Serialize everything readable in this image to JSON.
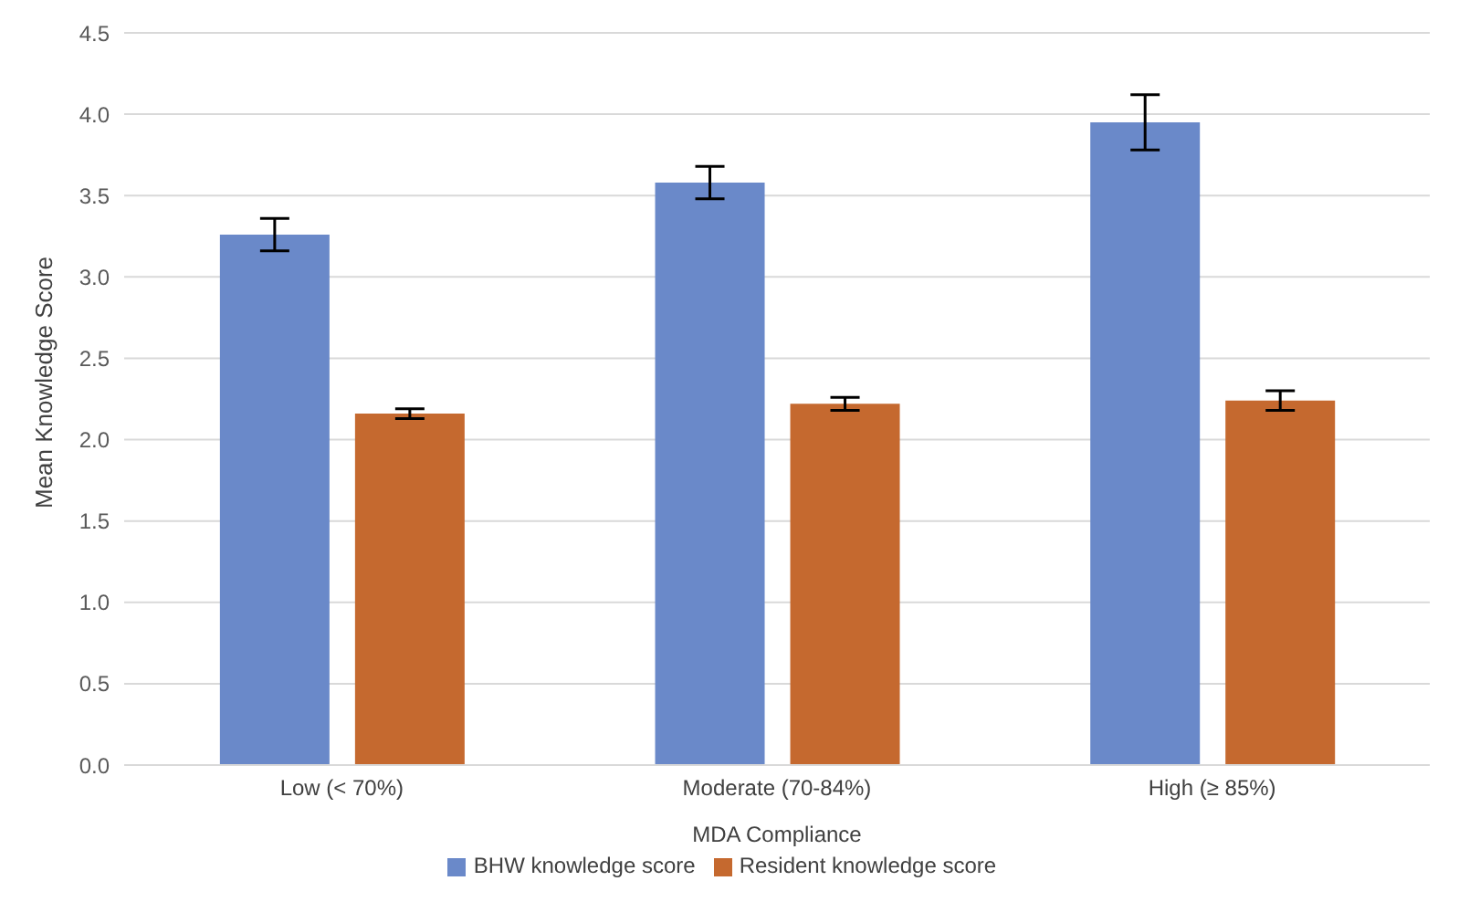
{
  "chart_data": {
    "type": "bar",
    "xlabel": "MDA Compliance",
    "ylabel": "Mean Knowledge Score",
    "categories": [
      "Low (< 70%)",
      "Moderate (70-84%)",
      "High (≥ 85%)"
    ],
    "series": [
      {
        "name": "BHW knowledge score",
        "color": "#6a89c9",
        "values": [
          3.26,
          3.58,
          3.95
        ],
        "errors": [
          0.1,
          0.1,
          0.17
        ]
      },
      {
        "name": "Resident knowledge score",
        "color": "#c5692f",
        "values": [
          2.16,
          2.22,
          2.24
        ],
        "errors": [
          0.03,
          0.04,
          0.06
        ]
      }
    ],
    "ylim": [
      0,
      4.5
    ],
    "yticks": [
      {
        "value": 0,
        "label": "0.0"
      },
      0.5,
      {
        "value": 1,
        "label": "1.0"
      },
      1.5,
      {
        "value": 2,
        "label": "2.0"
      },
      2.5,
      {
        "value": 3,
        "label": "3.0"
      },
      3.5,
      {
        "value": 4,
        "label": "4.0"
      },
      4.5
    ],
    "grid": "y",
    "legend": "bottom"
  }
}
